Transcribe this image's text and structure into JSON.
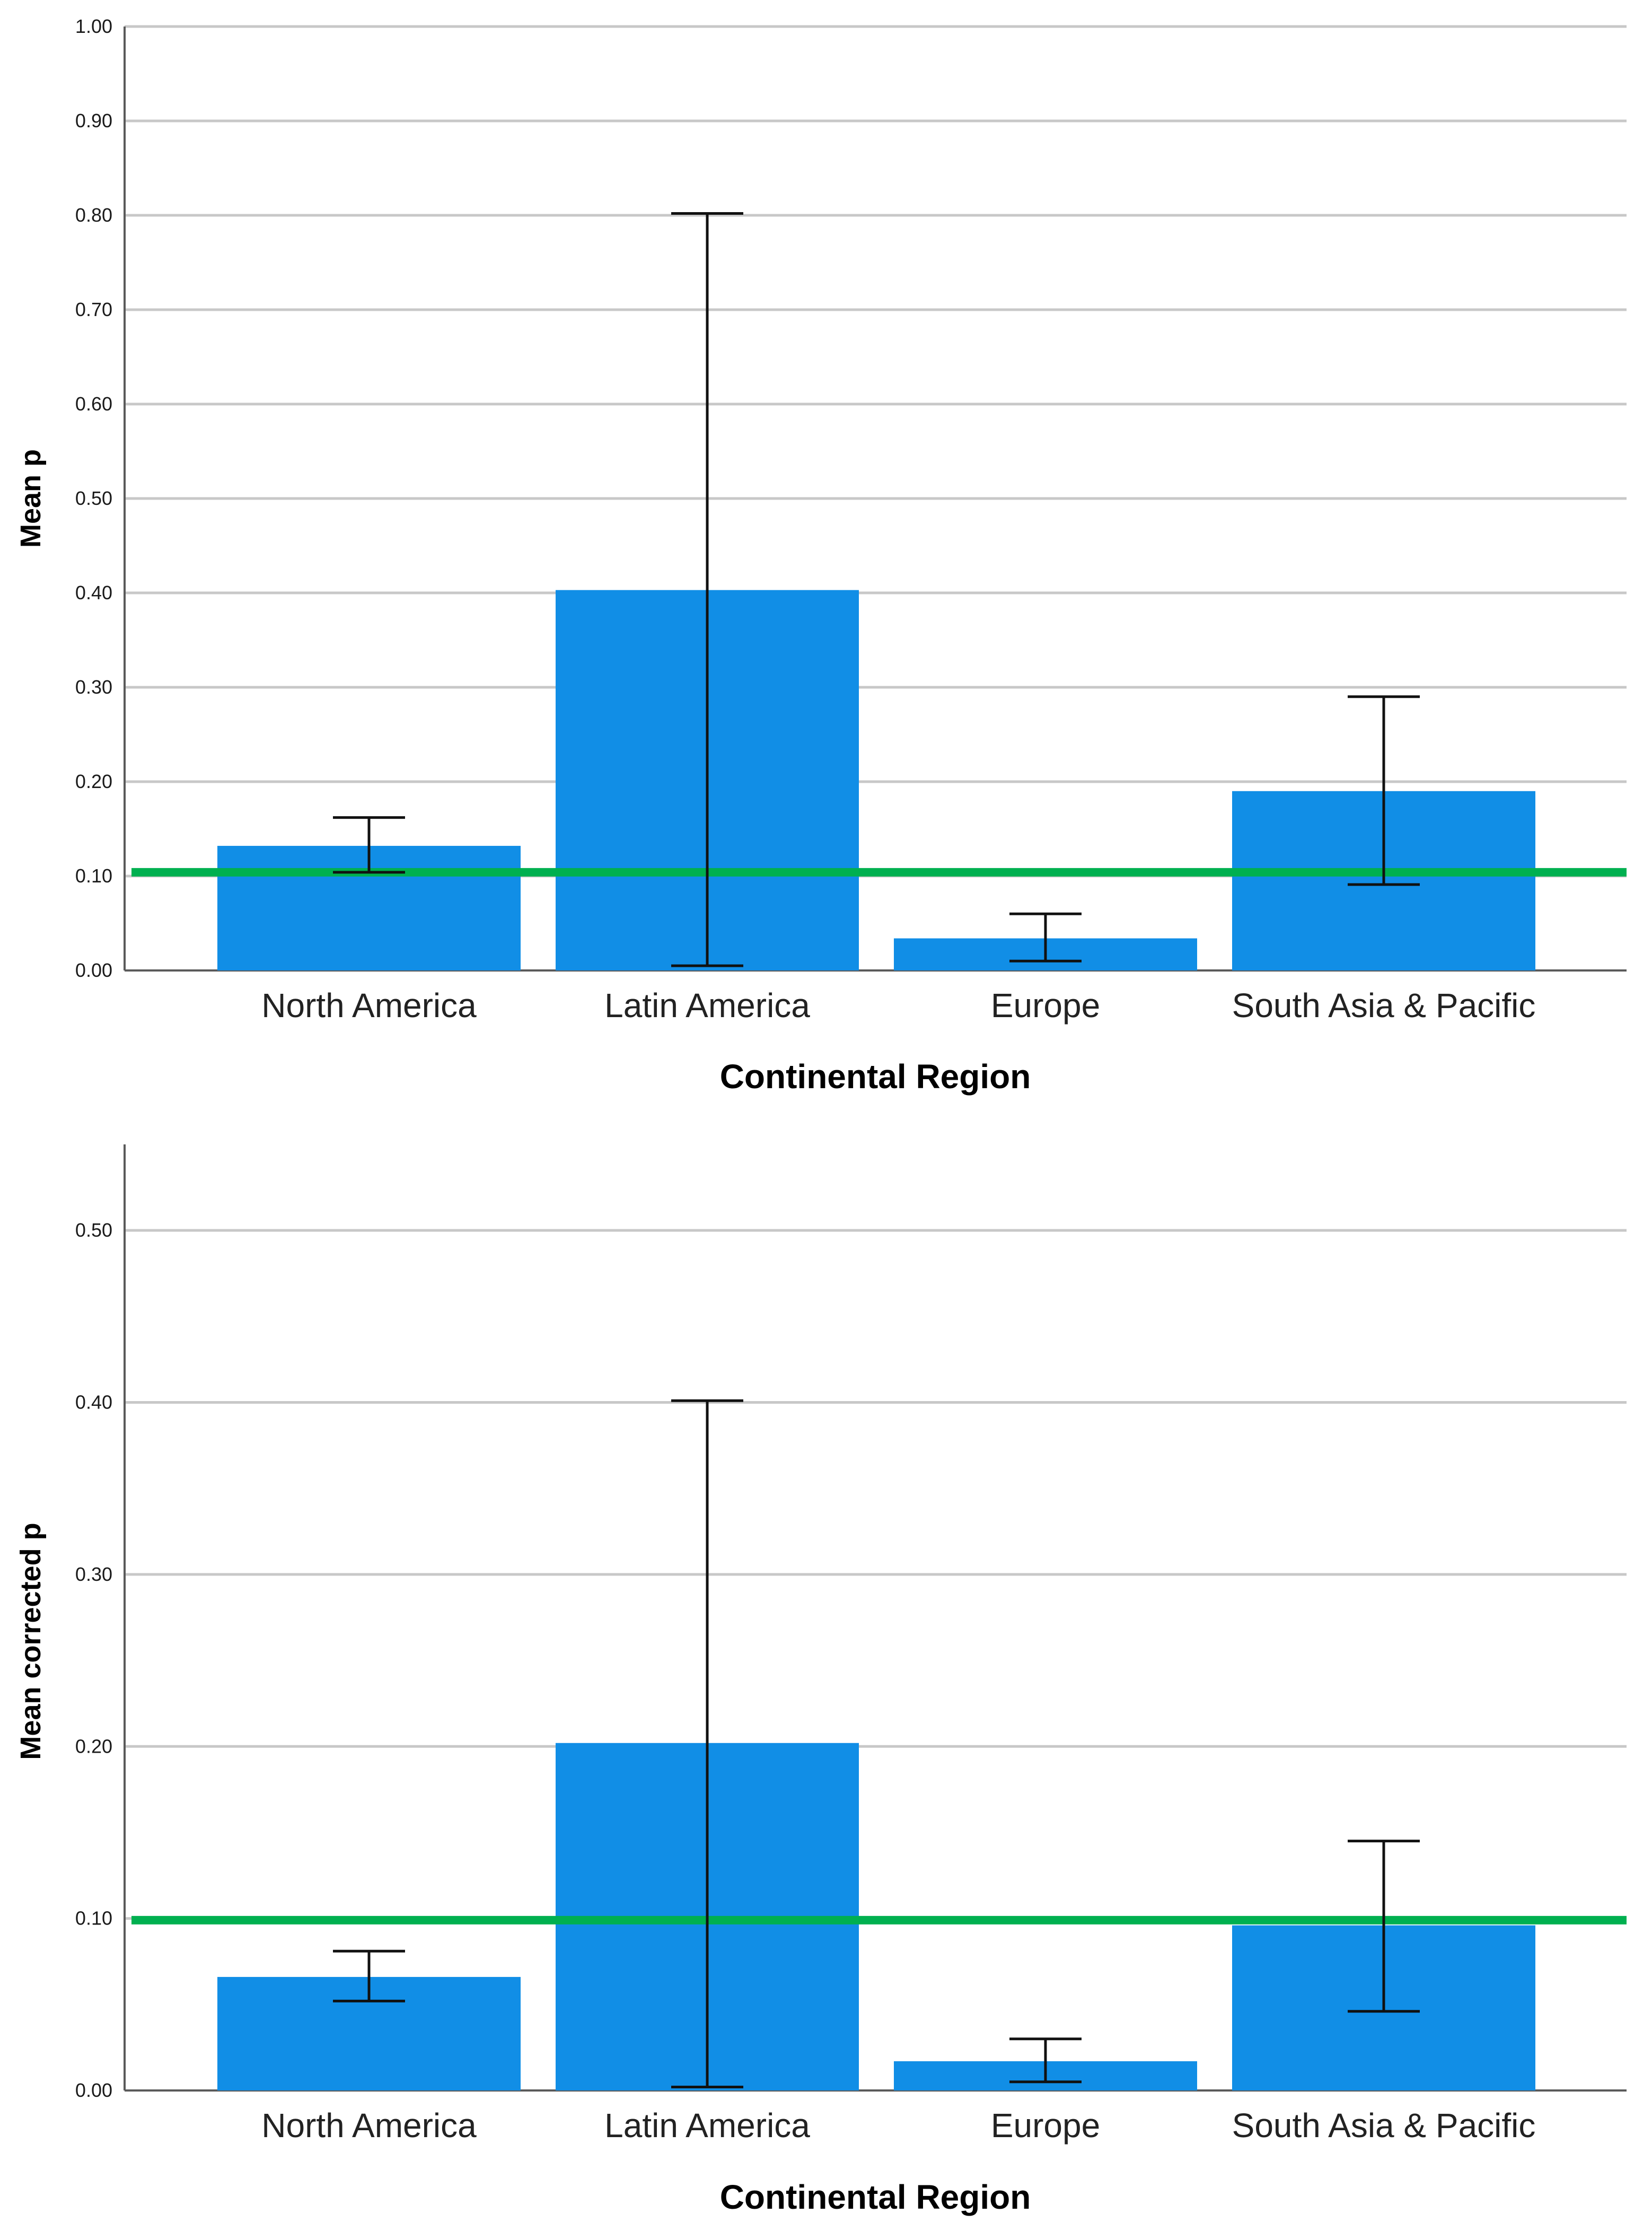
{
  "colors": {
    "bar": "#118ee6",
    "reference_line": "#00b050",
    "grid": "#c8c8c8",
    "axis": "#5a5a5a",
    "error_bar": "#111111"
  },
  "chart_data": [
    {
      "type": "bar",
      "title": "",
      "xlabel": "Continental Region",
      "ylabel": "Mean p",
      "categories": [
        "North America",
        "Latin America",
        "Europe",
        "South Asia & Pacific"
      ],
      "values": [
        0.132,
        0.403,
        0.034,
        0.19
      ],
      "error_bars": {
        "low": [
          0.104,
          0.005,
          0.01,
          0.091
        ],
        "high": [
          0.162,
          0.802,
          0.06,
          0.29
        ]
      },
      "reference_line": 0.104,
      "ylim": [
        0,
        1.0
      ],
      "yticks": [
        0.0,
        0.1,
        0.2,
        0.3,
        0.4,
        0.5,
        0.6,
        0.7,
        0.8,
        0.9,
        1.0
      ],
      "ytick_labels": [
        "0.00",
        "0.10",
        "0.20",
        "0.30",
        "0.40",
        "0.50",
        "0.60",
        "0.70",
        "0.80",
        "0.90",
        "1.00"
      ],
      "grid": true,
      "legend": "none"
    },
    {
      "type": "bar",
      "title": "",
      "xlabel": "Continental Region",
      "ylabel": "Mean corrected p",
      "categories": [
        "North America",
        "Latin America",
        "Europe",
        "South Asia & Pacific"
      ],
      "values": [
        0.066,
        0.202,
        0.017,
        0.096
      ],
      "error_bars": {
        "low": [
          0.052,
          0.002,
          0.005,
          0.046
        ],
        "high": [
          0.081,
          0.401,
          0.03,
          0.145
        ]
      },
      "reference_line": 0.099,
      "ylim": [
        0,
        0.55
      ],
      "yticks": [
        0.0,
        0.1,
        0.2,
        0.3,
        0.4,
        0.5
      ],
      "ytick_labels": [
        "0.00",
        "0.10",
        "0.20",
        "0.30",
        "0.40",
        "0.50"
      ],
      "grid": true,
      "legend": "none"
    }
  ]
}
